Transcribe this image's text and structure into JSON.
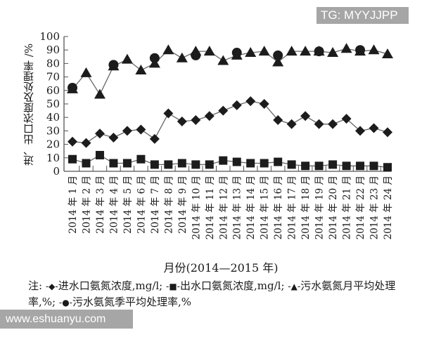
{
  "watermarks": {
    "top": "TG: MYYJJPP",
    "bottom": "www.eshuanyu.com"
  },
  "chart_data": {
    "type": "line",
    "title": "",
    "xlabel": "月份(2014—2015 年)",
    "ylabel": "进、出口浓度及处理率 /%",
    "ylim": [
      0,
      100
    ],
    "yticks": [
      0,
      10,
      20,
      30,
      40,
      50,
      60,
      70,
      80,
      90,
      100
    ],
    "grid": false,
    "legend_position": "bottom",
    "categories": [
      "2014 年 1 月",
      "2014 年 2 月",
      "2014 年 3 月",
      "2014 年 4 月",
      "2014 年 5 月",
      "2014 年 6 月",
      "2014 年 7 月",
      "2014 年 8 月",
      "2014 年 9 月",
      "2014 年 10 月",
      "2014 年 11 月",
      "2014 年 12 月",
      "2014 年 13 月",
      "2014 年 14 月",
      "2014 年 15 月",
      "2014 年 16 月",
      "2014 年 17 月",
      "2014 年 18 月",
      "2014 年 19 月",
      "2014 年 20 月",
      "2014 年 21 月",
      "2014 年 22 月",
      "2014 年 23 月",
      "2014 年 24 月"
    ],
    "series": [
      {
        "name": "进水口氨氮浓度,mg/l",
        "marker": "diamond",
        "values": [
          22,
          21,
          28,
          25,
          30,
          31,
          24,
          43,
          37,
          38,
          41,
          45,
          49,
          52,
          50,
          38,
          35,
          41,
          35,
          35,
          39,
          30,
          32,
          29
        ]
      },
      {
        "name": "出水口氨氮浓度,mg/l",
        "marker": "square",
        "values": [
          9,
          6,
          12,
          6,
          6,
          9,
          5,
          5,
          6,
          5,
          5,
          8,
          7,
          6,
          6,
          7,
          5,
          4,
          4,
          5,
          4,
          4,
          4,
          3
        ]
      },
      {
        "name": "污水氨氮月平均处理率,%",
        "marker": "triangle",
        "values": [
          61,
          73,
          57,
          78,
          83,
          75,
          80,
          90,
          84,
          89,
          89,
          82,
          86,
          88,
          89,
          81,
          89,
          89,
          89,
          88,
          91,
          89,
          90,
          87
        ]
      },
      {
        "name": "污水氨氮季平均处理率,%",
        "marker": "circle",
        "x_index": [
          0,
          3,
          6,
          9,
          12,
          15,
          18,
          21
        ],
        "values": [
          62,
          79,
          84,
          86,
          88,
          86,
          89,
          90
        ]
      }
    ]
  },
  "legend": {
    "prefix": "注:",
    "items": [
      {
        "label": "进水口氨氮浓度,mg/l;",
        "symbol": "-◆-"
      },
      {
        "label": "出水口氨氮浓度,mg/l;",
        "symbol": "-■-"
      },
      {
        "label": "污水氨氮月平均处理率,%;",
        "symbol": "-▲-"
      },
      {
        "label": "污水氨氮季平均处理率,%",
        "symbol": "-●-"
      }
    ]
  }
}
